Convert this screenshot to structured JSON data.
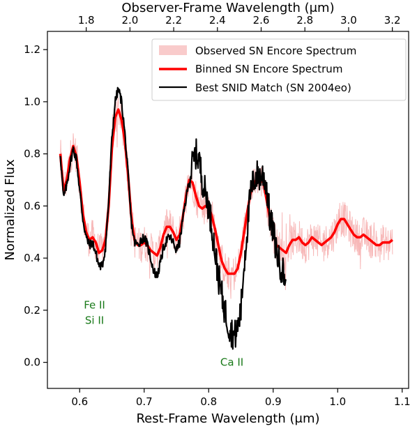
{
  "chart_data": {
    "type": "line",
    "title": "",
    "xlabel": "Rest-Frame Wavelength (μm)",
    "ylabel": "Normalized Flux",
    "x2label": "Observer-Frame Wavelength (μm)",
    "xlim": [
      0.55,
      1.11
    ],
    "ylim": [
      -0.1,
      1.27
    ],
    "x_ticks": [
      0.6,
      0.7,
      0.8,
      0.9,
      1.0,
      1.1
    ],
    "x_tick_labels": [
      "0.6",
      "0.7",
      "0.8",
      "0.9",
      "1.0",
      "1.1"
    ],
    "y_ticks": [
      0.0,
      0.2,
      0.4,
      0.6,
      0.8,
      1.0,
      1.2
    ],
    "y_tick_labels": [
      "0.0",
      "0.2",
      "0.4",
      "0.6",
      "0.8",
      "1.0",
      "1.2"
    ],
    "x2_ticks": [
      1.8,
      2.0,
      2.2,
      2.4,
      2.6,
      2.8,
      3.0,
      3.2
    ],
    "x2_tick_labels": [
      "1.8",
      "2.0",
      "2.2",
      "2.4",
      "2.6",
      "2.8",
      "3.0",
      "3.2"
    ],
    "redshift": 1.95,
    "grid": false,
    "legend_position": "top-right",
    "annotations": [
      {
        "lines": [
          "Fe II",
          "Si II"
        ],
        "x": 0.623,
        "y": 0.19
      },
      {
        "lines": [
          "Ca II"
        ],
        "x": 0.836,
        "y": 0.0
      }
    ],
    "series": [
      {
        "name": "Observed SN Encore Spectrum",
        "color": "#f4a0a0",
        "style": "noisy-band",
        "noise_amplitude": 0.07,
        "x": [
          0.57,
          0.575,
          0.58,
          0.585,
          0.59,
          0.595,
          0.6,
          0.605,
          0.61,
          0.615,
          0.62,
          0.625,
          0.63,
          0.635,
          0.64,
          0.645,
          0.65,
          0.655,
          0.66,
          0.665,
          0.67,
          0.675,
          0.68,
          0.685,
          0.69,
          0.695,
          0.7,
          0.705,
          0.71,
          0.715,
          0.72,
          0.725,
          0.73,
          0.735,
          0.74,
          0.745,
          0.75,
          0.755,
          0.76,
          0.765,
          0.77,
          0.775,
          0.78,
          0.785,
          0.79,
          0.795,
          0.8,
          0.805,
          0.81,
          0.815,
          0.82,
          0.825,
          0.83,
          0.835,
          0.84,
          0.845,
          0.85,
          0.855,
          0.86,
          0.865,
          0.87,
          0.875,
          0.88,
          0.885,
          0.89,
          0.895,
          0.9,
          0.905,
          0.91,
          0.915,
          0.92,
          0.925,
          0.93,
          0.935,
          0.94,
          0.945,
          0.95,
          0.955,
          0.96,
          0.965,
          0.97,
          0.975,
          0.98,
          0.985,
          0.99,
          0.995,
          1.0,
          1.005,
          1.01,
          1.015,
          1.02,
          1.025,
          1.03,
          1.035,
          1.04,
          1.045,
          1.05,
          1.055,
          1.06,
          1.065,
          1.07,
          1.075,
          1.08,
          1.085
        ],
        "y": [
          0.8,
          0.66,
          0.7,
          0.78,
          0.83,
          0.79,
          0.69,
          0.57,
          0.5,
          0.47,
          0.48,
          0.46,
          0.42,
          0.43,
          0.47,
          0.6,
          0.82,
          0.94,
          0.97,
          0.93,
          0.85,
          0.72,
          0.56,
          0.47,
          0.45,
          0.45,
          0.46,
          0.45,
          0.43,
          0.42,
          0.41,
          0.44,
          0.49,
          0.52,
          0.52,
          0.5,
          0.47,
          0.49,
          0.56,
          0.64,
          0.7,
          0.69,
          0.64,
          0.6,
          0.59,
          0.6,
          0.6,
          0.56,
          0.51,
          0.45,
          0.39,
          0.36,
          0.34,
          0.34,
          0.34,
          0.36,
          0.42,
          0.5,
          0.58,
          0.65,
          0.68,
          0.71,
          0.7,
          0.69,
          0.62,
          0.55,
          0.5,
          0.45,
          0.44,
          0.43,
          0.42,
          0.45,
          0.47,
          0.47,
          0.48,
          0.46,
          0.45,
          0.46,
          0.48,
          0.47,
          0.46,
          0.45,
          0.46,
          0.47,
          0.48,
          0.5,
          0.53,
          0.55,
          0.55,
          0.53,
          0.51,
          0.49,
          0.48,
          0.48,
          0.49,
          0.48,
          0.47,
          0.46,
          0.45,
          0.45,
          0.46,
          0.46,
          0.46,
          0.47
        ]
      },
      {
        "name": "Binned SN Encore Spectrum",
        "color": "#ff0000",
        "style": "thick-line",
        "x": [
          0.57,
          0.575,
          0.58,
          0.585,
          0.59,
          0.595,
          0.6,
          0.605,
          0.61,
          0.615,
          0.62,
          0.625,
          0.63,
          0.635,
          0.64,
          0.645,
          0.65,
          0.655,
          0.66,
          0.665,
          0.67,
          0.675,
          0.68,
          0.685,
          0.69,
          0.695,
          0.7,
          0.705,
          0.71,
          0.715,
          0.72,
          0.725,
          0.73,
          0.735,
          0.74,
          0.745,
          0.75,
          0.755,
          0.76,
          0.765,
          0.77,
          0.775,
          0.78,
          0.785,
          0.79,
          0.795,
          0.8,
          0.805,
          0.81,
          0.815,
          0.82,
          0.825,
          0.83,
          0.835,
          0.84,
          0.845,
          0.85,
          0.855,
          0.86,
          0.865,
          0.87,
          0.875,
          0.88,
          0.885,
          0.89,
          0.895,
          0.9,
          0.905,
          0.91,
          0.915,
          0.92,
          0.925,
          0.93,
          0.935,
          0.94,
          0.945,
          0.95,
          0.955,
          0.96,
          0.965,
          0.97,
          0.975,
          0.98,
          0.985,
          0.99,
          0.995,
          1.0,
          1.005,
          1.01,
          1.015,
          1.02,
          1.025,
          1.03,
          1.035,
          1.04,
          1.045,
          1.05,
          1.055,
          1.06,
          1.065,
          1.07,
          1.075,
          1.08,
          1.085
        ],
        "y": [
          0.8,
          0.66,
          0.7,
          0.78,
          0.83,
          0.79,
          0.69,
          0.57,
          0.5,
          0.47,
          0.48,
          0.46,
          0.42,
          0.43,
          0.47,
          0.6,
          0.82,
          0.94,
          0.97,
          0.93,
          0.85,
          0.72,
          0.56,
          0.47,
          0.45,
          0.45,
          0.46,
          0.45,
          0.43,
          0.42,
          0.41,
          0.44,
          0.49,
          0.52,
          0.52,
          0.5,
          0.47,
          0.49,
          0.56,
          0.64,
          0.7,
          0.69,
          0.64,
          0.6,
          0.59,
          0.6,
          0.6,
          0.56,
          0.51,
          0.45,
          0.39,
          0.36,
          0.34,
          0.34,
          0.34,
          0.36,
          0.42,
          0.5,
          0.58,
          0.65,
          0.68,
          0.71,
          0.7,
          0.69,
          0.62,
          0.55,
          0.5,
          0.45,
          0.44,
          0.43,
          0.42,
          0.45,
          0.47,
          0.47,
          0.48,
          0.46,
          0.45,
          0.46,
          0.48,
          0.47,
          0.46,
          0.45,
          0.46,
          0.47,
          0.48,
          0.5,
          0.53,
          0.55,
          0.55,
          0.53,
          0.51,
          0.49,
          0.48,
          0.48,
          0.49,
          0.48,
          0.47,
          0.46,
          0.45,
          0.45,
          0.46,
          0.46,
          0.46,
          0.47
        ]
      },
      {
        "name": "Best SNID Match (SN 2004eo)",
        "color": "#000000",
        "style": "line",
        "x": [
          0.57,
          0.575,
          0.58,
          0.585,
          0.59,
          0.595,
          0.6,
          0.605,
          0.61,
          0.615,
          0.62,
          0.625,
          0.63,
          0.635,
          0.64,
          0.645,
          0.65,
          0.655,
          0.66,
          0.665,
          0.67,
          0.675,
          0.68,
          0.685,
          0.69,
          0.695,
          0.7,
          0.705,
          0.71,
          0.715,
          0.72,
          0.725,
          0.73,
          0.735,
          0.74,
          0.745,
          0.75,
          0.755,
          0.76,
          0.765,
          0.77,
          0.775,
          0.78,
          0.785,
          0.79,
          0.795,
          0.8,
          0.805,
          0.81,
          0.815,
          0.82,
          0.825,
          0.83,
          0.835,
          0.84,
          0.845,
          0.85,
          0.855,
          0.86,
          0.865,
          0.87,
          0.875,
          0.88,
          0.885,
          0.89,
          0.895,
          0.9,
          0.905,
          0.91,
          0.915,
          0.92
        ],
        "y": [
          0.8,
          0.63,
          0.68,
          0.76,
          0.82,
          0.78,
          0.66,
          0.55,
          0.48,
          0.45,
          0.46,
          0.42,
          0.37,
          0.37,
          0.44,
          0.62,
          0.86,
          1.0,
          1.05,
          1.0,
          0.88,
          0.72,
          0.54,
          0.46,
          0.45,
          0.47,
          0.48,
          0.45,
          0.4,
          0.35,
          0.33,
          0.38,
          0.44,
          0.47,
          0.48,
          0.46,
          0.43,
          0.46,
          0.55,
          0.63,
          0.7,
          0.76,
          0.8,
          0.78,
          0.7,
          0.65,
          0.6,
          0.52,
          0.42,
          0.33,
          0.26,
          0.2,
          0.15,
          0.12,
          0.1,
          0.13,
          0.2,
          0.38,
          0.52,
          0.65,
          0.7,
          0.72,
          0.71,
          0.72,
          0.67,
          0.55,
          0.5,
          0.43,
          0.38,
          0.35,
          0.31
        ]
      }
    ]
  }
}
